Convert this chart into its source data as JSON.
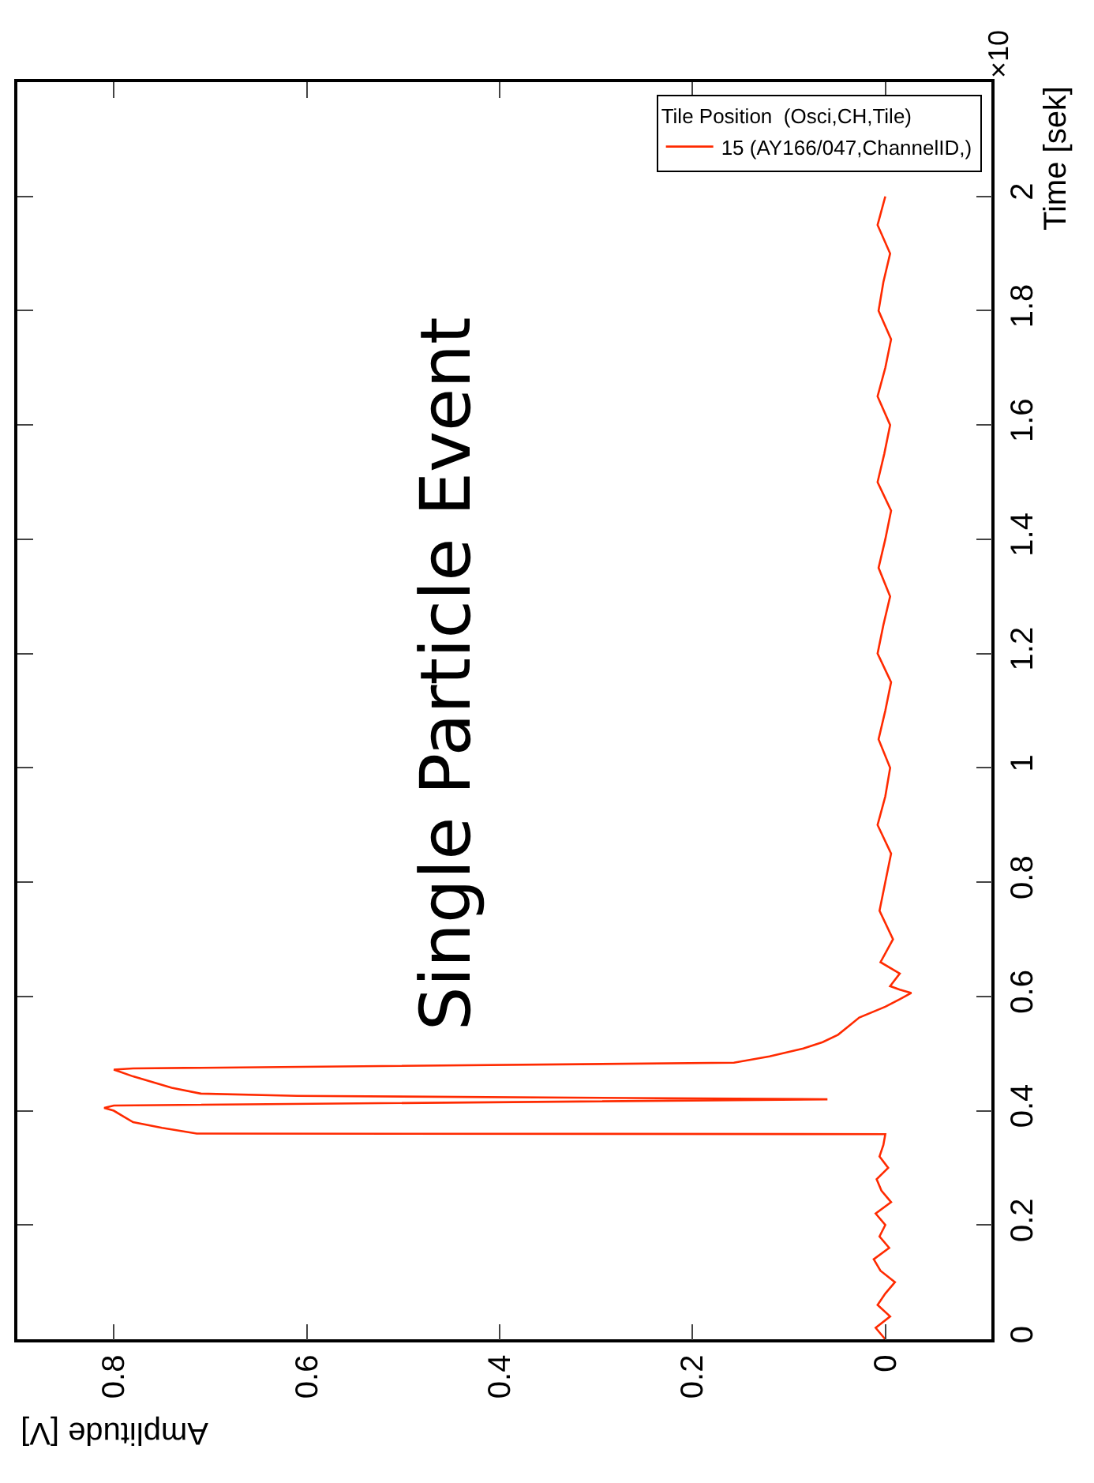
{
  "chart_data": {
    "type": "line",
    "xlabel": "Amplitude [V]",
    "ylabel": "Time [sek]",
    "legend_title": "Tile Position  (Osci,CH,Tile)",
    "annotations": [
      "Single Particle Event",
      "×10"
    ],
    "xlim": [
      0.9,
      -0.11
    ],
    "xticks": [
      0,
      0.2,
      0.4,
      0.6,
      0.8
    ],
    "ylim": [
      0,
      2.2
    ],
    "yticks": [
      0,
      0.2,
      0.4,
      0.6,
      0.8,
      1,
      1.2,
      1.4,
      1.6,
      1.8,
      2
    ],
    "series": [
      {
        "name": "15 (AY166/047,ChannelID,)",
        "color": "#ff2a00",
        "x": [
          0,
          0.01,
          -0.005,
          0.008,
          0,
          -0.01,
          0.005,
          0.012,
          -0.004,
          0.006,
          0,
          0.01,
          -0.006,
          0.004,
          0.009,
          -0.003,
          0.006,
          0.002,
          0,
          0.714,
          0.75,
          0.78,
          0.79,
          0.8,
          0.81,
          0.8,
          0.06,
          0.61,
          0.71,
          0.74,
          0.76,
          0.78,
          0.8,
          0.78,
          0.157,
          0.12,
          0.085,
          0.065,
          0.049,
          0.038,
          0.027,
          0,
          -0.015,
          -0.027,
          -0.015,
          -0.005,
          -0.015,
          0.005,
          -0.008,
          0.006,
          0,
          -0.006,
          0.008,
          0,
          -0.005,
          0.007,
          0,
          -0.006,
          0.008,
          0.002,
          -0.005,
          0.007,
          0,
          -0.006,
          0.008,
          0.001,
          -0.005,
          0.008,
          0,
          -0.006,
          0.007,
          0.002,
          -0.005,
          0.008,
          0
        ],
        "values": [
          0,
          0.02,
          0.04,
          0.06,
          0.08,
          0.1,
          0.12,
          0.14,
          0.16,
          0.18,
          0.2,
          0.22,
          0.24,
          0.26,
          0.28,
          0.3,
          0.32,
          0.34,
          0.359,
          0.36,
          0.37,
          0.38,
          0.39,
          0.4,
          0.405,
          0.409,
          0.42,
          0.426,
          0.43,
          0.44,
          0.45,
          0.46,
          0.472,
          0.474,
          0.484,
          0.495,
          0.509,
          0.52,
          0.533,
          0.548,
          0.563,
          0.582,
          0.595,
          0.606,
          0.612,
          0.618,
          0.64,
          0.66,
          0.7,
          0.75,
          0.8,
          0.85,
          0.9,
          0.95,
          1.0,
          1.05,
          1.1,
          1.15,
          1.2,
          1.25,
          1.3,
          1.35,
          1.4,
          1.45,
          1.5,
          1.55,
          1.6,
          1.65,
          1.7,
          1.75,
          1.8,
          1.85,
          1.9,
          1.95,
          2.0
        ]
      }
    ],
    "legend": "top right"
  }
}
